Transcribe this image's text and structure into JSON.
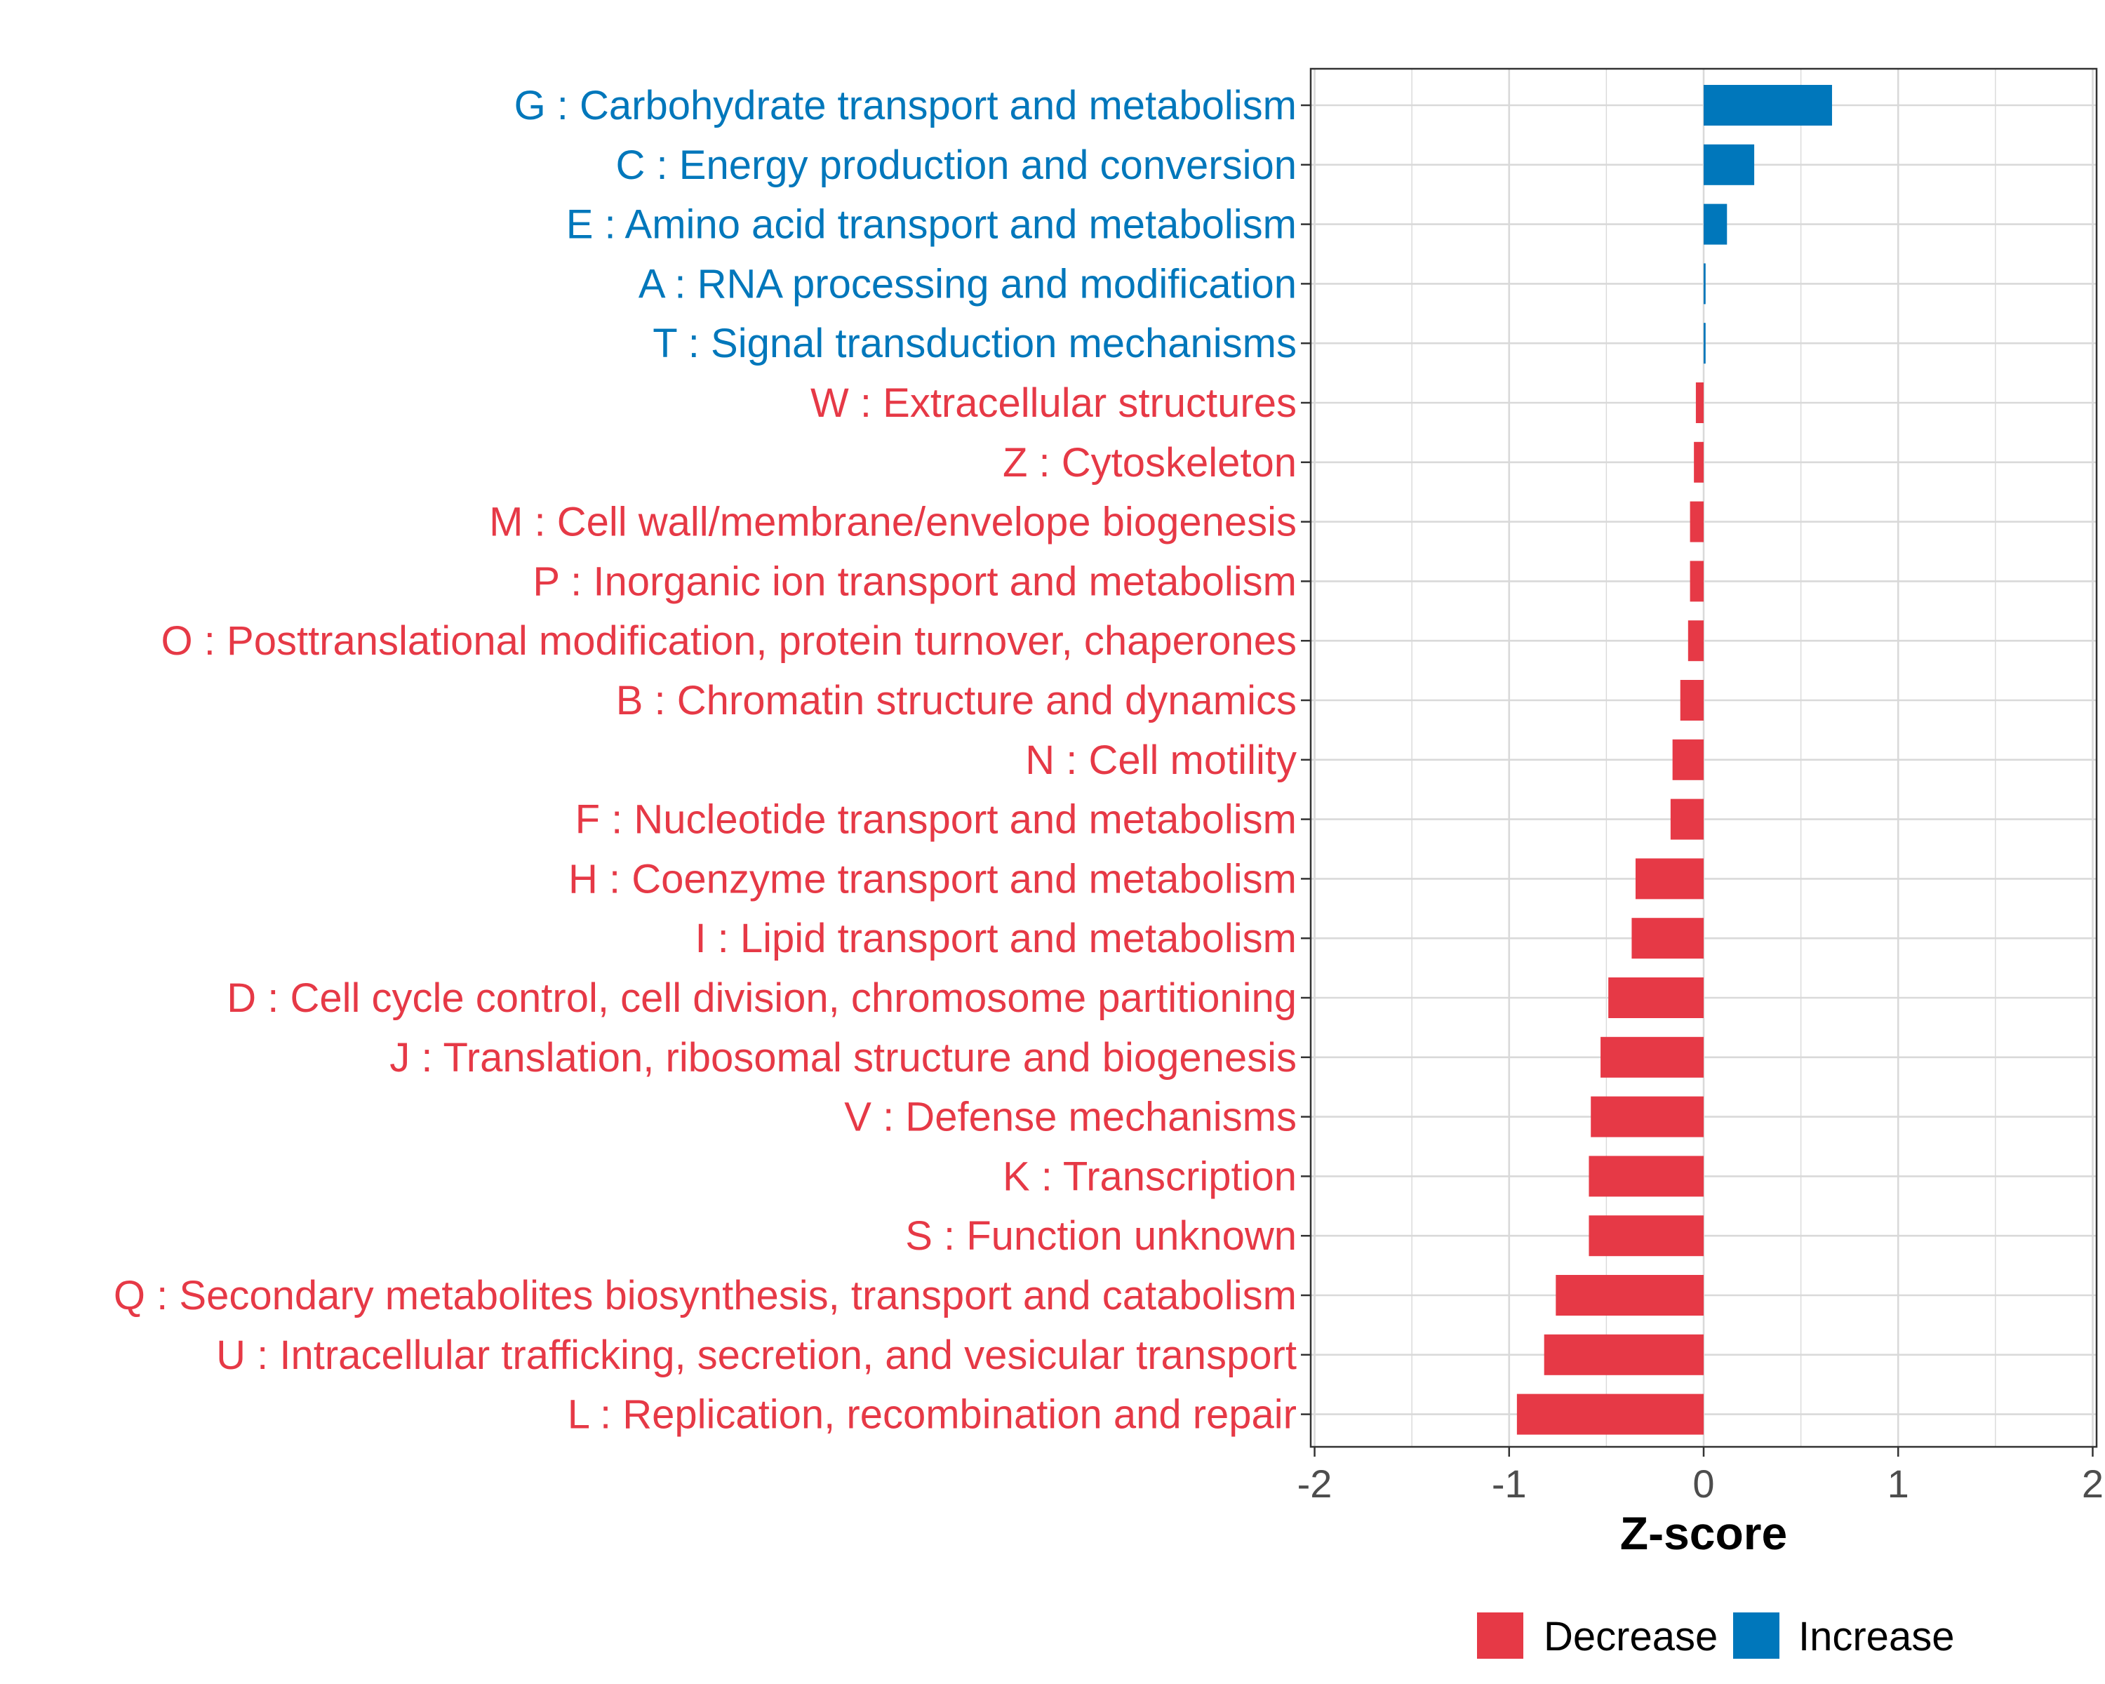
{
  "chart_data": {
    "type": "bar",
    "orientation": "horizontal",
    "title": "",
    "xlabel": "Z-score",
    "ylabel": "",
    "xlim": [
      -2.02,
      2.02
    ],
    "xticks": [
      -2,
      -1,
      0,
      1,
      2
    ],
    "xtick_labels": [
      "-2",
      "-1",
      "0",
      "1",
      "2"
    ],
    "grid": true,
    "legend_position": "bottom",
    "categories": [
      "G : Carbohydrate transport and metabolism",
      "C : Energy production and conversion",
      "E : Amino acid transport and metabolism",
      "A : RNA processing and modification",
      "T : Signal transduction mechanisms",
      "W : Extracellular structures",
      "Z : Cytoskeleton",
      "M : Cell wall/membrane/envelope biogenesis",
      "P : Inorganic ion transport and metabolism",
      "O : Posttranslational modification, protein turnover, chaperones",
      "B : Chromatin structure and dynamics",
      "N : Cell motility",
      "F : Nucleotide transport and metabolism",
      "H : Coenzyme transport and metabolism",
      "I : Lipid transport and metabolism",
      "D : Cell cycle control, cell division, chromosome partitioning",
      "J : Translation, ribosomal structure and biogenesis",
      "V : Defense mechanisms",
      "K : Transcription",
      "S : Function unknown",
      "Q : Secondary metabolites biosynthesis, transport and catabolism",
      "U : Intracellular trafficking, secretion, and vesicular transport",
      "L : Replication, recombination and repair"
    ],
    "values": [
      0.66,
      0.26,
      0.12,
      0.01,
      0.01,
      -0.04,
      -0.05,
      -0.07,
      -0.07,
      -0.08,
      -0.12,
      -0.16,
      -0.17,
      -0.35,
      -0.37,
      -0.49,
      -0.53,
      -0.58,
      -0.59,
      -0.59,
      -0.76,
      -0.82,
      -0.96
    ],
    "groups": [
      "Increase",
      "Increase",
      "Increase",
      "Increase",
      "Increase",
      "Decrease",
      "Decrease",
      "Decrease",
      "Decrease",
      "Decrease",
      "Decrease",
      "Decrease",
      "Decrease",
      "Decrease",
      "Decrease",
      "Decrease",
      "Decrease",
      "Decrease",
      "Decrease",
      "Decrease",
      "Decrease",
      "Decrease",
      "Decrease"
    ],
    "legend": [
      {
        "name": "Decrease",
        "color": "#e63946"
      },
      {
        "name": "Increase",
        "color": "#0077bb"
      }
    ]
  }
}
